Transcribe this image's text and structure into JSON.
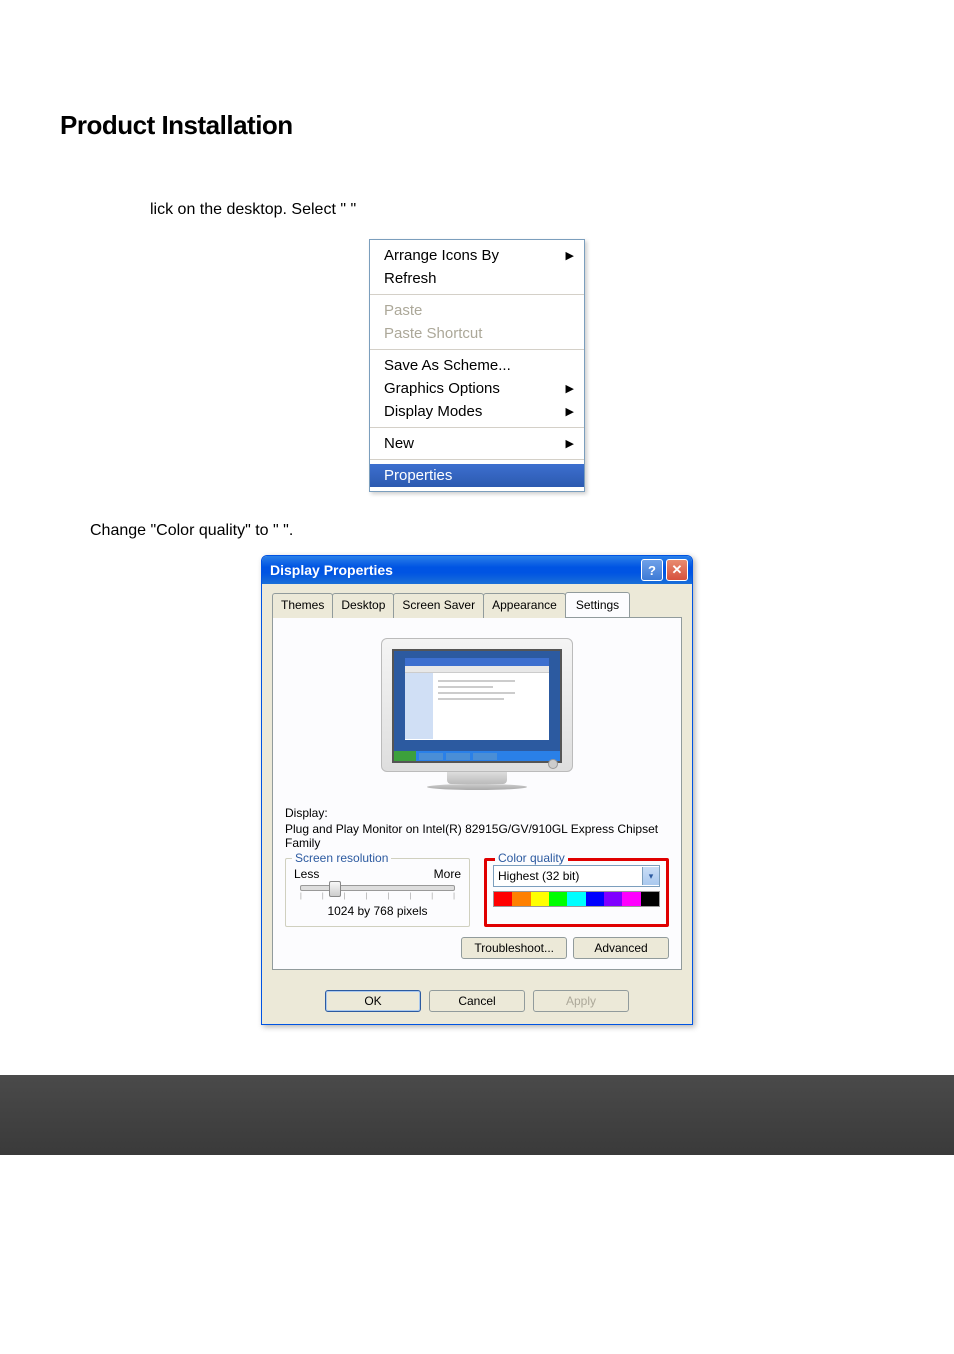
{
  "heading": "Product Installation",
  "line1": "lick on the desktop. Select \"                      \"",
  "line2": "Change \"Color quality\" to \"                          \".",
  "context_menu": {
    "groups": [
      {
        "items": [
          {
            "label": "Arrange Icons By",
            "has_arrow": true,
            "disabled": false
          },
          {
            "label": "Refresh",
            "has_arrow": false,
            "disabled": false
          }
        ]
      },
      {
        "items": [
          {
            "label": "Paste",
            "has_arrow": false,
            "disabled": true
          },
          {
            "label": "Paste Shortcut",
            "has_arrow": false,
            "disabled": true
          }
        ]
      },
      {
        "items": [
          {
            "label": "Save As Scheme...",
            "has_arrow": false,
            "disabled": false
          },
          {
            "label": "Graphics Options",
            "has_arrow": true,
            "disabled": false
          },
          {
            "label": "Display Modes",
            "has_arrow": true,
            "disabled": false
          }
        ]
      },
      {
        "items": [
          {
            "label": "New",
            "has_arrow": true,
            "disabled": false
          }
        ]
      },
      {
        "items": [
          {
            "label": "Properties",
            "has_arrow": false,
            "disabled": false,
            "selected": true
          }
        ]
      }
    ]
  },
  "dialog": {
    "title": "Display Properties",
    "tabs": [
      "Themes",
      "Desktop",
      "Screen Saver",
      "Appearance",
      "Settings"
    ],
    "active_tab": "Settings",
    "display_label": "Display:",
    "display_info": "Plug and Play Monitor on Intel(R) 82915G/GV/910GL Express Chipset Family",
    "screen_res": {
      "legend": "Screen resolution",
      "less": "Less",
      "more": "More",
      "value": "1024 by 768 pixels"
    },
    "color_quality": {
      "legend": "Color quality",
      "value": "Highest (32 bit)",
      "bar_colors": [
        "#ff0000",
        "#ff8000",
        "#ffff00",
        "#00ff00",
        "#00ffff",
        "#0000ff",
        "#8000ff",
        "#ff00ff",
        "#000000"
      ]
    },
    "troubleshoot": "Troubleshoot...",
    "advanced": "Advanced",
    "ok": "OK",
    "cancel": "Cancel",
    "apply": "Apply"
  },
  "colors": {
    "xp_blue": "#0054e3",
    "highlight_red": "#e00000",
    "dialog_bg": "#ece9d8"
  }
}
